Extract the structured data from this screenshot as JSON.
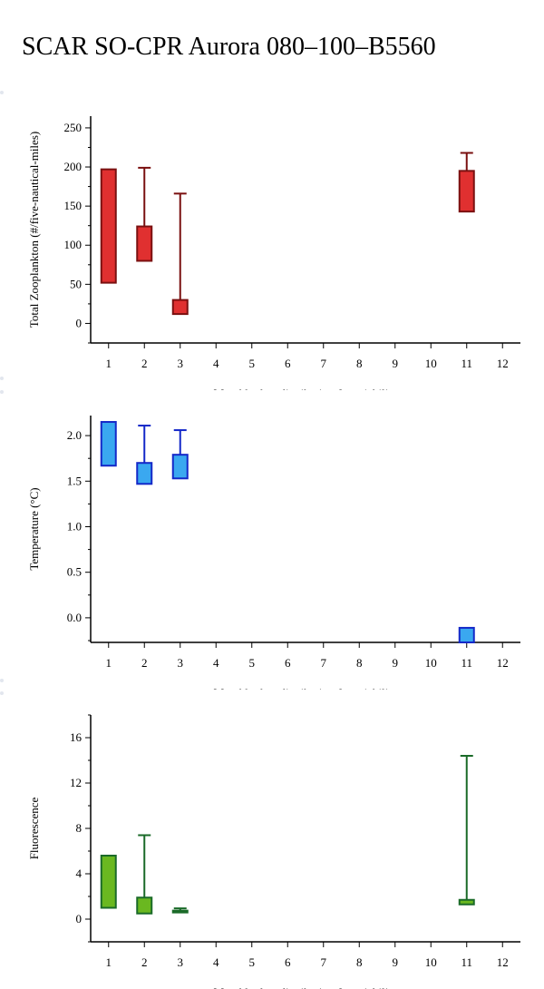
{
  "page": {
    "title": "SCAR SO-CPR Aurora 080–100–B5560"
  },
  "chart_data": [
    {
      "type": "box",
      "ylabel": "Total Zooplankton (#/five-nautical-miles)",
      "xlabel": "Monthly data distribution & variability",
      "xlim": [
        0.5,
        12.5
      ],
      "ylim": [
        -25,
        265
      ],
      "yticks": [
        0,
        50,
        100,
        150,
        200,
        250
      ],
      "ytick_labels": [
        "0",
        "50",
        "100",
        "150",
        "200",
        "250"
      ],
      "categories": [
        "1",
        "2",
        "3",
        "4",
        "5",
        "6",
        "7",
        "8",
        "9",
        "10",
        "11",
        "12"
      ],
      "fill_color": "#e03030",
      "stroke_color": "#7a1010",
      "boxes": [
        {
          "month": 1,
          "low": 52,
          "high": 197
        },
        {
          "month": 2,
          "low": 80,
          "high": 124,
          "whisker_high": 199
        },
        {
          "month": 3,
          "low": 12,
          "high": 30,
          "whisker_high": 166
        },
        {
          "month": 11,
          "low": 143,
          "high": 195,
          "whisker_high": 218
        }
      ]
    },
    {
      "type": "box",
      "ylabel": "Temperature (°C)",
      "xlabel": "Monthly data distribution & variability",
      "xlim": [
        0.5,
        12.5
      ],
      "ylim": [
        -0.27,
        2.22
      ],
      "yticks": [
        0.0,
        0.5,
        1.0,
        1.5,
        2.0
      ],
      "ytick_labels": [
        "0.0",
        "0.5",
        "1.0",
        "1.5",
        "2.0"
      ],
      "categories": [
        "1",
        "2",
        "3",
        "4",
        "5",
        "6",
        "7",
        "8",
        "9",
        "10",
        "11",
        "12"
      ],
      "fill_color": "#3aa8f0",
      "stroke_color": "#1428c8",
      "boxes": [
        {
          "month": 1,
          "low": 1.67,
          "high": 2.15
        },
        {
          "month": 2,
          "low": 1.47,
          "high": 1.7,
          "whisker_high": 2.11
        },
        {
          "month": 3,
          "low": 1.53,
          "high": 1.79,
          "whisker_high": 2.06
        },
        {
          "month": 11,
          "low": -0.27,
          "high": -0.11
        }
      ]
    },
    {
      "type": "box",
      "ylabel": "Fluorescence",
      "xlabel": "Monthly data distribution & variability",
      "xlim": [
        0.5,
        12.5
      ],
      "ylim": [
        -2,
        18
      ],
      "yticks": [
        0,
        4,
        8,
        12,
        16
      ],
      "ytick_labels": [
        "0",
        "4",
        "8",
        "12",
        "16"
      ],
      "categories": [
        "1",
        "2",
        "3",
        "4",
        "5",
        "6",
        "7",
        "8",
        "9",
        "10",
        "11",
        "12"
      ],
      "fill_color": "#6ab820",
      "stroke_color": "#1a6a28",
      "boxes": [
        {
          "month": 1,
          "low": 1.0,
          "high": 5.6
        },
        {
          "month": 2,
          "low": 0.5,
          "high": 1.9,
          "whisker_high": 7.4
        },
        {
          "month": 3,
          "low": 0.6,
          "high": 0.75,
          "whisker_high": 0.95
        },
        {
          "month": 11,
          "low": 1.3,
          "high": 1.7,
          "whisker_high": 14.4
        }
      ]
    }
  ]
}
